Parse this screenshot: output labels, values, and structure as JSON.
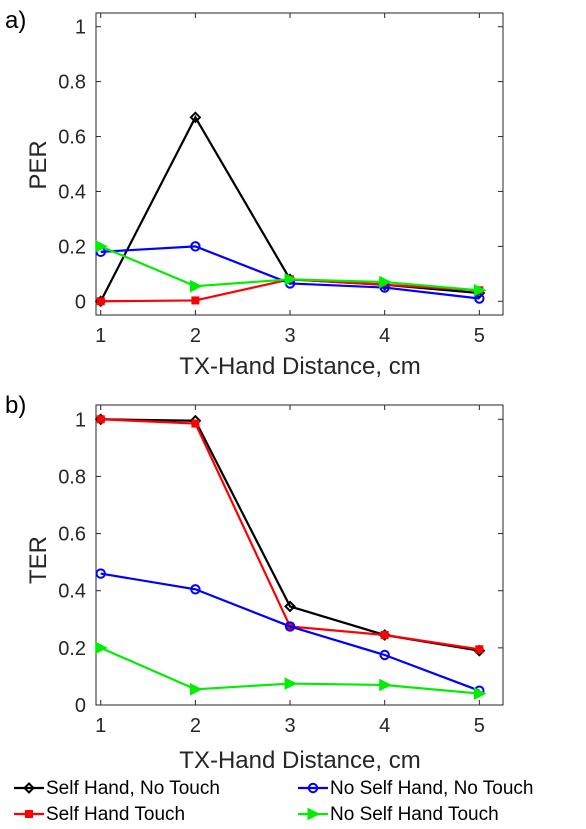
{
  "chart_data": [
    {
      "type": "line",
      "panel_label": "a)",
      "xlabel": "TX-Hand Distance, cm",
      "ylabel": "PER",
      "x": [
        1,
        2,
        3,
        4,
        5
      ],
      "xlim": [
        0.95,
        5.25
      ],
      "ylim": [
        -0.05,
        1.05
      ],
      "xticks": [
        1,
        2,
        3,
        4,
        5
      ],
      "yticks": [
        0,
        0.2,
        0.4,
        0.6,
        0.8,
        1
      ],
      "ytick_labels": [
        "0",
        "0.2",
        "0.4",
        "0.6",
        "0.8",
        "1"
      ],
      "grid": false,
      "series": [
        {
          "name": "Self Hand, No Touch",
          "color": "#000000",
          "marker": "diamond",
          "values": [
            0.0,
            0.67,
            0.08,
            0.06,
            0.03
          ]
        },
        {
          "name": "Self Hand Touch",
          "color": "#ff0000",
          "marker": "square",
          "values": [
            0.0,
            0.003,
            0.08,
            0.06,
            0.04
          ]
        },
        {
          "name": "No Self Hand, No Touch",
          "color": "#0000ff",
          "marker": "circle",
          "values": [
            0.18,
            0.2,
            0.065,
            0.05,
            0.01
          ]
        },
        {
          "name": "No Self Hand Touch",
          "color": "#00ee00",
          "marker": "triangle-right",
          "values": [
            0.2,
            0.055,
            0.08,
            0.07,
            0.04
          ]
        }
      ]
    },
    {
      "type": "line",
      "panel_label": "b)",
      "xlabel": "TX-Hand Distance, cm",
      "ylabel": "TER",
      "x": [
        1,
        2,
        3,
        4,
        5
      ],
      "xlim": [
        0.95,
        5.25
      ],
      "ylim": [
        0,
        1.05
      ],
      "xticks": [
        1,
        2,
        3,
        4,
        5
      ],
      "yticks": [
        0,
        0.2,
        0.4,
        0.6,
        0.8,
        1
      ],
      "ytick_labels": [
        "0",
        "0.2",
        "0.4",
        "0.6",
        "0.8",
        "1"
      ],
      "grid": false,
      "series": [
        {
          "name": "Self Hand, No Touch",
          "color": "#000000",
          "marker": "diamond",
          "values": [
            1.0,
            0.995,
            0.345,
            0.245,
            0.19
          ]
        },
        {
          "name": "Self Hand Touch",
          "color": "#ff0000",
          "marker": "square",
          "values": [
            1.0,
            0.985,
            0.275,
            0.245,
            0.195
          ]
        },
        {
          "name": "No Self Hand, No Touch",
          "color": "#0000ff",
          "marker": "circle",
          "values": [
            0.46,
            0.405,
            0.275,
            0.175,
            0.05
          ]
        },
        {
          "name": "No Self Hand Touch",
          "color": "#00ee00",
          "marker": "triangle-right",
          "values": [
            0.2,
            0.055,
            0.075,
            0.07,
            0.04
          ]
        }
      ]
    }
  ],
  "legend": {
    "placement": "bottom",
    "entries": [
      "Self Hand, No Touch",
      "Self Hand Touch",
      "No Self Hand, No Touch",
      "No Self Hand Touch"
    ]
  }
}
